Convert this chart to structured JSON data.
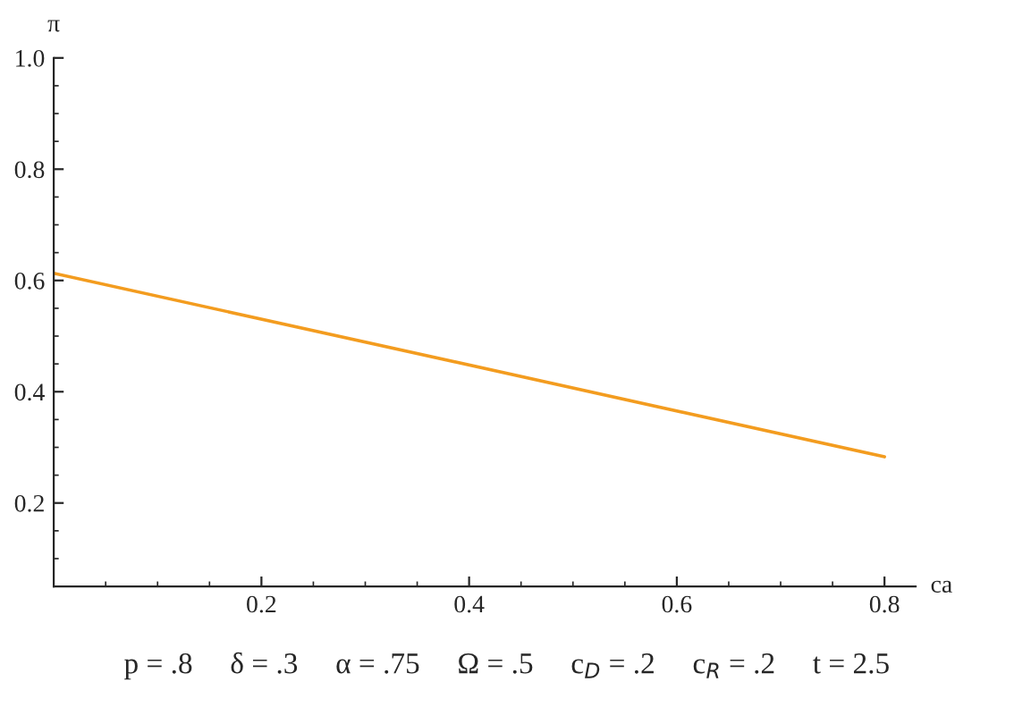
{
  "chart_data": {
    "type": "line",
    "xlabel": "ca",
    "ylabel": "π",
    "x": [
      0,
      0.8
    ],
    "series": [
      {
        "color": "#f39c1f",
        "values": [
          0.613,
          0.283
        ]
      }
    ],
    "xlim": [
      0,
      0.83
    ],
    "ylim": [
      0.05,
      1.0
    ],
    "xticks": [
      {
        "value": 0.2,
        "label": "0.2"
      },
      {
        "value": 0.4,
        "label": "0.4"
      },
      {
        "value": 0.6,
        "label": "0.6"
      },
      {
        "value": 0.8,
        "label": "0.8"
      }
    ],
    "yticks": [
      {
        "value": 0.2,
        "label": "0.2"
      },
      {
        "value": 0.4,
        "label": "0.4"
      },
      {
        "value": 0.6,
        "label": "0.6"
      },
      {
        "value": 0.8,
        "label": "0.8"
      },
      {
        "value": 1.0,
        "label": "1.0"
      }
    ],
    "grid": false,
    "legend": false,
    "marker": "none",
    "line_style": "solid",
    "annotations": [
      "p = .8     δ = .3     α = .75     Ω = .5     c$_{D}$ = .2     c$_{R}$ = .2     t = 2.5"
    ]
  }
}
